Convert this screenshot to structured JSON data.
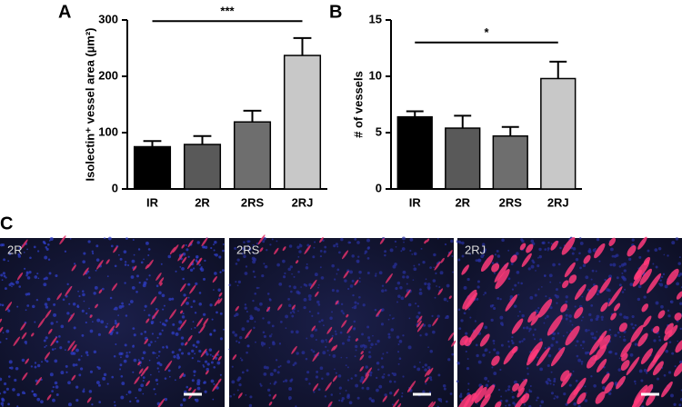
{
  "chart_data": [
    {
      "type": "bar",
      "panel": "A",
      "ylabel": "Isolectin⁺ vessel area (µm²)",
      "categories": [
        "IR",
        "2R",
        "2RS",
        "2RJ"
      ],
      "values": [
        75,
        79,
        119,
        237
      ],
      "errors": [
        10,
        15,
        20,
        31
      ],
      "colors": [
        "#000000",
        "#595959",
        "#6e6e6e",
        "#c8c8c8"
      ],
      "ylim": [
        0,
        300
      ],
      "yticks": [
        0,
        100,
        200,
        300
      ],
      "significance": {
        "label": "***",
        "from": 0,
        "to": 3,
        "y": 298
      }
    },
    {
      "type": "bar",
      "panel": "B",
      "ylabel": "# of vessels",
      "categories": [
        "IR",
        "2R",
        "2RS",
        "2RJ"
      ],
      "values": [
        6.4,
        5.4,
        4.7,
        9.8
      ],
      "errors": [
        0.5,
        1.1,
        0.8,
        1.5
      ],
      "colors": [
        "#000000",
        "#595959",
        "#6e6e6e",
        "#c8c8c8"
      ],
      "ylim": [
        0,
        15
      ],
      "yticks": [
        0,
        5,
        10,
        15
      ],
      "significance": {
        "label": "*",
        "from": 0,
        "to": 3,
        "y": 13
      }
    }
  ],
  "images": {
    "panel": "C",
    "labels": [
      "2R",
      "2RS",
      "2RJ"
    ]
  }
}
